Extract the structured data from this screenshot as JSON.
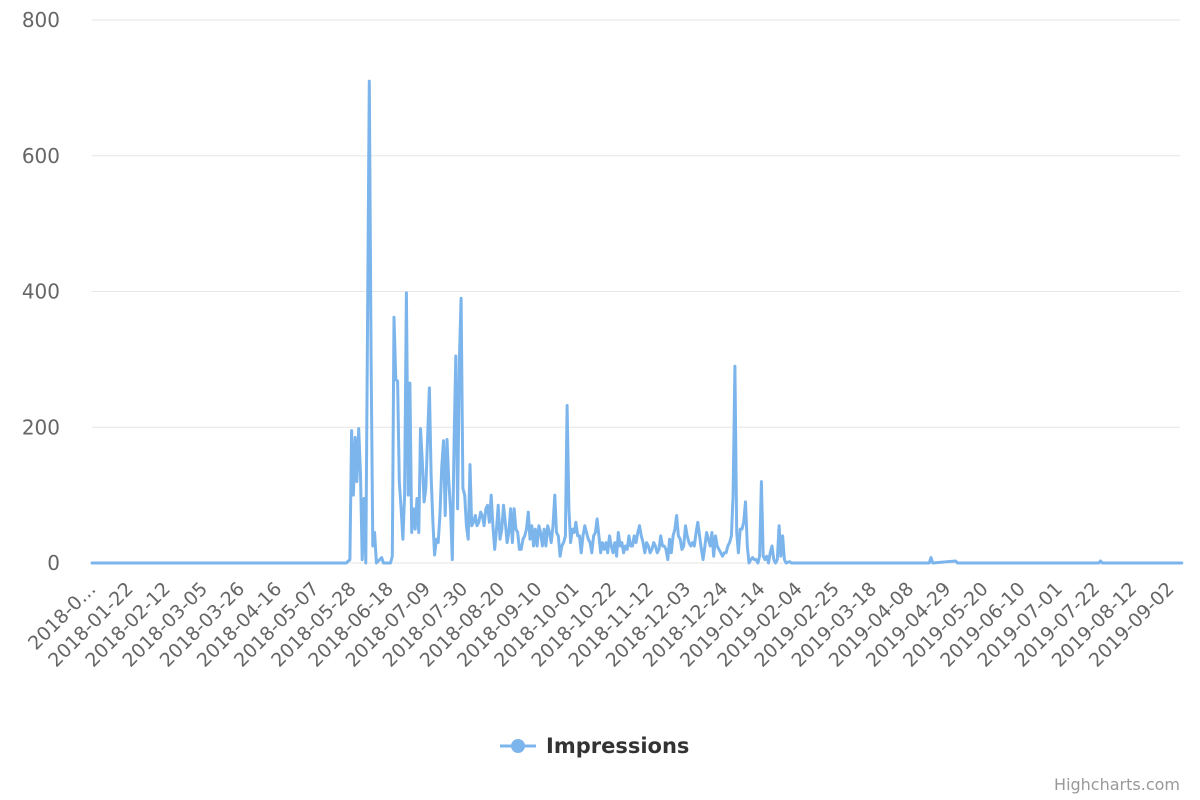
{
  "chart_data": {
    "type": "line",
    "title": "",
    "xlabel": "",
    "ylabel": "",
    "ylim": [
      0,
      800
    ],
    "y_ticks": [
      0,
      200,
      400,
      600,
      800
    ],
    "x_tick_labels": [
      "2018-0…",
      "2018-01-22",
      "2018-02-12",
      "2018-03-05",
      "2018-03-26",
      "2018-04-16",
      "2018-05-07",
      "2018-05-28",
      "2018-06-18",
      "2018-07-09",
      "2018-07-30",
      "2018-08-20",
      "2018-09-10",
      "2018-10-01",
      "2018-10-22",
      "2018-11-12",
      "2018-12-03",
      "2018-12-24",
      "2019-01-14",
      "2019-02-04",
      "2019-02-25",
      "2019-03-18",
      "2019-04-08",
      "2019-04-29",
      "2019-05-20",
      "2019-06-10",
      "2019-07-01",
      "2019-07-22",
      "2019-08-12",
      "2019-09-02"
    ],
    "grid": true,
    "legend_position": "bottom-center",
    "series": [
      {
        "name": "Impressions",
        "color": "#7cb5ec",
        "points": [
          [
            "2018-01-01",
            0
          ],
          [
            "2018-05-25",
            0
          ],
          [
            "2018-05-27",
            5
          ],
          [
            "2018-05-28",
            195
          ],
          [
            "2018-05-29",
            100
          ],
          [
            "2018-05-30",
            185
          ],
          [
            "2018-05-31",
            120
          ],
          [
            "2018-06-01",
            198
          ],
          [
            "2018-06-02",
            130
          ],
          [
            "2018-06-03",
            5
          ],
          [
            "2018-06-04",
            95
          ],
          [
            "2018-06-05",
            0
          ],
          [
            "2018-06-07",
            710
          ],
          [
            "2018-06-08",
            300
          ],
          [
            "2018-06-09",
            25
          ],
          [
            "2018-06-10",
            45
          ],
          [
            "2018-06-11",
            0
          ],
          [
            "2018-06-14",
            8
          ],
          [
            "2018-06-15",
            0
          ],
          [
            "2018-06-19",
            0
          ],
          [
            "2018-06-20",
            10
          ],
          [
            "2018-06-21",
            362
          ],
          [
            "2018-06-22",
            270
          ],
          [
            "2018-06-23",
            268
          ],
          [
            "2018-06-24",
            120
          ],
          [
            "2018-06-25",
            80
          ],
          [
            "2018-06-26",
            35
          ],
          [
            "2018-06-27",
            100
          ],
          [
            "2018-06-28",
            398
          ],
          [
            "2018-06-29",
            100
          ],
          [
            "2018-06-30",
            265
          ],
          [
            "2018-07-01",
            45
          ],
          [
            "2018-07-02",
            80
          ],
          [
            "2018-07-03",
            50
          ],
          [
            "2018-07-04",
            95
          ],
          [
            "2018-07-05",
            45
          ],
          [
            "2018-07-06",
            198
          ],
          [
            "2018-07-07",
            150
          ],
          [
            "2018-07-08",
            90
          ],
          [
            "2018-07-09",
            110
          ],
          [
            "2018-07-10",
            185
          ],
          [
            "2018-07-11",
            258
          ],
          [
            "2018-07-12",
            130
          ],
          [
            "2018-07-13",
            60
          ],
          [
            "2018-07-14",
            12
          ],
          [
            "2018-07-15",
            35
          ],
          [
            "2018-07-16",
            30
          ],
          [
            "2018-07-17",
            70
          ],
          [
            "2018-07-18",
            140
          ],
          [
            "2018-07-19",
            180
          ],
          [
            "2018-07-20",
            70
          ],
          [
            "2018-07-21",
            182
          ],
          [
            "2018-07-22",
            120
          ],
          [
            "2018-07-23",
            80
          ],
          [
            "2018-07-24",
            5
          ],
          [
            "2018-07-25",
            180
          ],
          [
            "2018-07-26",
            305
          ],
          [
            "2018-07-27",
            80
          ],
          [
            "2018-07-28",
            300
          ],
          [
            "2018-07-29",
            390
          ],
          [
            "2018-07-30",
            110
          ],
          [
            "2018-07-31",
            100
          ],
          [
            "2018-08-01",
            55
          ],
          [
            "2018-08-02",
            35
          ],
          [
            "2018-08-03",
            145
          ],
          [
            "2018-08-04",
            55
          ],
          [
            "2018-08-05",
            60
          ],
          [
            "2018-08-06",
            70
          ],
          [
            "2018-08-07",
            55
          ],
          [
            "2018-08-08",
            60
          ],
          [
            "2018-08-09",
            75
          ],
          [
            "2018-08-10",
            70
          ],
          [
            "2018-08-11",
            55
          ],
          [
            "2018-08-12",
            80
          ],
          [
            "2018-08-13",
            85
          ],
          [
            "2018-08-14",
            60
          ],
          [
            "2018-08-15",
            100
          ],
          [
            "2018-08-16",
            55
          ],
          [
            "2018-08-17",
            20
          ],
          [
            "2018-08-18",
            50
          ],
          [
            "2018-08-19",
            85
          ],
          [
            "2018-08-20",
            35
          ],
          [
            "2018-08-21",
            50
          ],
          [
            "2018-08-22",
            85
          ],
          [
            "2018-08-23",
            60
          ],
          [
            "2018-08-24",
            30
          ],
          [
            "2018-08-25",
            45
          ],
          [
            "2018-08-26",
            80
          ],
          [
            "2018-08-27",
            30
          ],
          [
            "2018-08-28",
            80
          ],
          [
            "2018-08-29",
            50
          ],
          [
            "2018-08-30",
            45
          ],
          [
            "2018-08-31",
            20
          ],
          [
            "2018-09-01",
            20
          ],
          [
            "2018-09-02",
            35
          ],
          [
            "2018-09-03",
            40
          ],
          [
            "2018-09-04",
            50
          ],
          [
            "2018-09-05",
            75
          ],
          [
            "2018-09-06",
            35
          ],
          [
            "2018-09-07",
            55
          ],
          [
            "2018-09-08",
            25
          ],
          [
            "2018-09-09",
            50
          ],
          [
            "2018-09-10",
            25
          ],
          [
            "2018-09-11",
            55
          ],
          [
            "2018-09-12",
            45
          ],
          [
            "2018-09-13",
            25
          ],
          [
            "2018-09-14",
            50
          ],
          [
            "2018-09-15",
            25
          ],
          [
            "2018-09-16",
            55
          ],
          [
            "2018-09-17",
            45
          ],
          [
            "2018-09-18",
            30
          ],
          [
            "2018-09-19",
            55
          ],
          [
            "2018-09-20",
            100
          ],
          [
            "2018-09-21",
            45
          ],
          [
            "2018-09-22",
            40
          ],
          [
            "2018-09-23",
            10
          ],
          [
            "2018-09-24",
            25
          ],
          [
            "2018-09-25",
            30
          ],
          [
            "2018-09-26",
            40
          ],
          [
            "2018-09-27",
            232
          ],
          [
            "2018-09-28",
            80
          ],
          [
            "2018-09-29",
            30
          ],
          [
            "2018-09-30",
            50
          ],
          [
            "2018-10-01",
            45
          ],
          [
            "2018-10-02",
            60
          ],
          [
            "2018-10-03",
            40
          ],
          [
            "2018-10-04",
            40
          ],
          [
            "2018-10-05",
            15
          ],
          [
            "2018-10-06",
            40
          ],
          [
            "2018-10-07",
            55
          ],
          [
            "2018-10-08",
            45
          ],
          [
            "2018-10-09",
            35
          ],
          [
            "2018-10-10",
            30
          ],
          [
            "2018-10-11",
            15
          ],
          [
            "2018-10-12",
            40
          ],
          [
            "2018-10-13",
            45
          ],
          [
            "2018-10-14",
            65
          ],
          [
            "2018-10-15",
            40
          ],
          [
            "2018-10-16",
            15
          ],
          [
            "2018-10-17",
            30
          ],
          [
            "2018-10-18",
            20
          ],
          [
            "2018-10-19",
            30
          ],
          [
            "2018-10-20",
            15
          ],
          [
            "2018-10-21",
            40
          ],
          [
            "2018-10-22",
            25
          ],
          [
            "2018-10-23",
            15
          ],
          [
            "2018-10-24",
            30
          ],
          [
            "2018-10-25",
            10
          ],
          [
            "2018-10-26",
            45
          ],
          [
            "2018-10-27",
            25
          ],
          [
            "2018-10-28",
            30
          ],
          [
            "2018-10-29",
            15
          ],
          [
            "2018-10-30",
            25
          ],
          [
            "2018-10-31",
            20
          ],
          [
            "2018-11-01",
            40
          ],
          [
            "2018-11-02",
            25
          ],
          [
            "2018-11-03",
            25
          ],
          [
            "2018-11-04",
            40
          ],
          [
            "2018-11-05",
            30
          ],
          [
            "2018-11-06",
            45
          ],
          [
            "2018-11-07",
            55
          ],
          [
            "2018-11-08",
            40
          ],
          [
            "2018-11-09",
            30
          ],
          [
            "2018-11-10",
            15
          ],
          [
            "2018-11-11",
            30
          ],
          [
            "2018-11-12",
            25
          ],
          [
            "2018-11-13",
            15
          ],
          [
            "2018-11-14",
            20
          ],
          [
            "2018-11-15",
            30
          ],
          [
            "2018-11-16",
            25
          ],
          [
            "2018-11-17",
            15
          ],
          [
            "2018-11-18",
            20
          ],
          [
            "2018-11-19",
            40
          ],
          [
            "2018-11-20",
            25
          ],
          [
            "2018-11-21",
            25
          ],
          [
            "2018-11-22",
            20
          ],
          [
            "2018-11-23",
            5
          ],
          [
            "2018-11-24",
            35
          ],
          [
            "2018-11-25",
            15
          ],
          [
            "2018-11-26",
            40
          ],
          [
            "2018-11-27",
            50
          ],
          [
            "2018-11-28",
            70
          ],
          [
            "2018-11-29",
            40
          ],
          [
            "2018-11-30",
            35
          ],
          [
            "2018-12-01",
            20
          ],
          [
            "2018-12-02",
            25
          ],
          [
            "2018-12-03",
            55
          ],
          [
            "2018-12-04",
            40
          ],
          [
            "2018-12-05",
            30
          ],
          [
            "2018-12-06",
            25
          ],
          [
            "2018-12-07",
            30
          ],
          [
            "2018-12-08",
            25
          ],
          [
            "2018-12-09",
            45
          ],
          [
            "2018-12-10",
            60
          ],
          [
            "2018-12-11",
            40
          ],
          [
            "2018-12-12",
            20
          ],
          [
            "2018-12-13",
            5
          ],
          [
            "2018-12-14",
            25
          ],
          [
            "2018-12-15",
            45
          ],
          [
            "2018-12-16",
            35
          ],
          [
            "2018-12-17",
            25
          ],
          [
            "2018-12-18",
            45
          ],
          [
            "2018-12-19",
            10
          ],
          [
            "2018-12-20",
            40
          ],
          [
            "2018-12-21",
            25
          ],
          [
            "2018-12-22",
            20
          ],
          [
            "2018-12-23",
            15
          ],
          [
            "2018-12-24",
            10
          ],
          [
            "2018-12-25",
            15
          ],
          [
            "2018-12-26",
            15
          ],
          [
            "2018-12-27",
            25
          ],
          [
            "2018-12-28",
            30
          ],
          [
            "2018-12-29",
            40
          ],
          [
            "2018-12-30",
            100
          ],
          [
            "2018-12-31",
            290
          ],
          [
            "2019-01-01",
            45
          ],
          [
            "2019-01-02",
            15
          ],
          [
            "2019-01-03",
            50
          ],
          [
            "2019-01-04",
            50
          ],
          [
            "2019-01-05",
            60
          ],
          [
            "2019-01-06",
            90
          ],
          [
            "2019-01-07",
            25
          ],
          [
            "2019-01-08",
            0
          ],
          [
            "2019-01-09",
            5
          ],
          [
            "2019-01-10",
            8
          ],
          [
            "2019-01-11",
            5
          ],
          [
            "2019-01-12",
            5
          ],
          [
            "2019-01-13",
            0
          ],
          [
            "2019-01-14",
            10
          ],
          [
            "2019-01-15",
            120
          ],
          [
            "2019-01-16",
            10
          ],
          [
            "2019-01-17",
            5
          ],
          [
            "2019-01-18",
            10
          ],
          [
            "2019-01-19",
            0
          ],
          [
            "2019-01-20",
            15
          ],
          [
            "2019-01-21",
            25
          ],
          [
            "2019-01-22",
            5
          ],
          [
            "2019-01-23",
            0
          ],
          [
            "2019-01-24",
            5
          ],
          [
            "2019-01-25",
            55
          ],
          [
            "2019-01-26",
            10
          ],
          [
            "2019-01-27",
            40
          ],
          [
            "2019-01-28",
            5
          ],
          [
            "2019-01-29",
            0
          ],
          [
            "2019-01-31",
            2
          ],
          [
            "2019-02-01",
            0
          ],
          [
            "2019-04-20",
            0
          ],
          [
            "2019-04-21",
            8
          ],
          [
            "2019-04-22",
            0
          ],
          [
            "2019-05-05",
            3
          ],
          [
            "2019-05-06",
            0
          ],
          [
            "2019-07-25",
            0
          ],
          [
            "2019-07-26",
            3
          ],
          [
            "2019-07-27",
            0
          ],
          [
            "2019-09-10",
            0
          ]
        ]
      }
    ]
  },
  "legend": {
    "label": "Impressions"
  },
  "credits": {
    "text": "Highcharts.com"
  }
}
